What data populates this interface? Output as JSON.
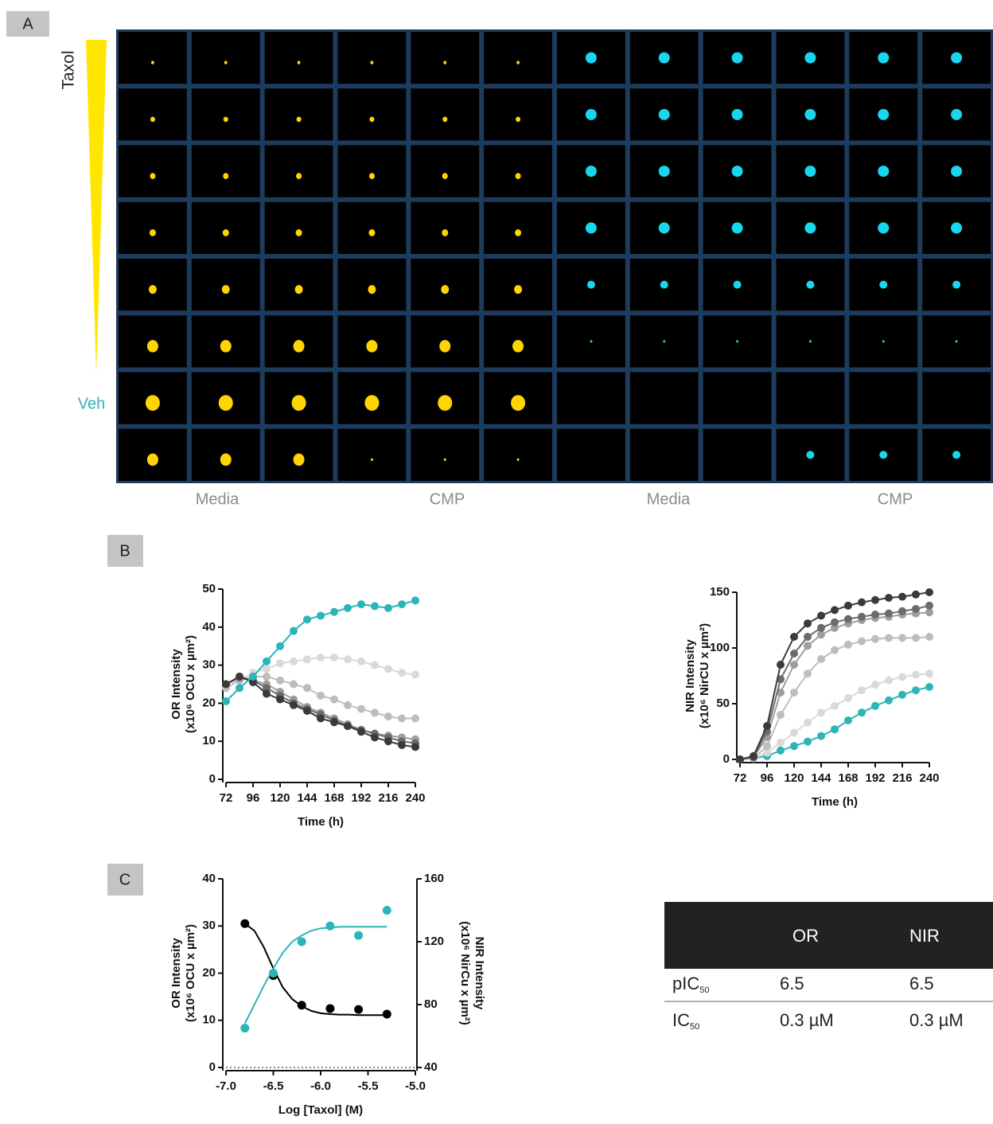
{
  "panel_labels": [
    "A",
    "B",
    "C"
  ],
  "image_grid": {
    "gradient_top": "Taxol",
    "gradient_bottom": "Veh",
    "column_labels": [
      "Media",
      "CMP",
      "Media",
      "CMP"
    ]
  },
  "chart_data": [
    {
      "type": "line",
      "xlabel": "Time (h)",
      "ylabel": [
        "OR Intensity",
        "(x10⁶ OCU x µm²)"
      ],
      "x": [
        72,
        84,
        96,
        108,
        120,
        132,
        144,
        156,
        168,
        180,
        192,
        204,
        216,
        228,
        240
      ],
      "xlim": [
        72,
        240
      ],
      "xticks": [
        72,
        96,
        120,
        144,
        168,
        192,
        216,
        240
      ],
      "ylim": [
        0,
        50
      ],
      "yticks": [
        0,
        10,
        20,
        30,
        40,
        50
      ],
      "series": [
        {
          "color": "#d9d9d9",
          "values": [
            24,
            26,
            28,
            29,
            30.5,
            31,
            31.5,
            32,
            32,
            31.5,
            31,
            30,
            29,
            28,
            27.5
          ]
        },
        {
          "color": "#bdbdbd",
          "values": [
            24,
            26,
            27,
            27,
            26,
            25,
            24,
            22,
            21,
            19.5,
            18.5,
            17.5,
            16.5,
            16,
            16
          ]
        },
        {
          "color": "#9e9e9e",
          "values": [
            25,
            26.5,
            26,
            25,
            23,
            21,
            19,
            17.5,
            16,
            14.5,
            13,
            12,
            11.5,
            11,
            10.5
          ]
        },
        {
          "color": "#6b6b6b",
          "values": [
            25,
            27,
            26,
            24,
            22,
            20,
            18.5,
            17,
            15.5,
            14,
            13,
            12,
            11,
            10,
            9.5
          ]
        },
        {
          "color": "#3a3a3a",
          "values": [
            25,
            27,
            25.5,
            22.5,
            21,
            19.5,
            18,
            16,
            15,
            14,
            12.5,
            11,
            10,
            9,
            8.5
          ]
        },
        {
          "color": "#2bb5b8",
          "values": [
            20.5,
            24,
            27,
            31,
            35,
            39,
            42,
            43,
            44,
            45,
            46,
            45.5,
            45,
            46,
            47
          ]
        }
      ]
    },
    {
      "type": "line",
      "xlabel": "Time (h)",
      "ylabel": [
        "NIR Intensity",
        "(x10⁶ NirCU x µm²)"
      ],
      "x": [
        72,
        84,
        96,
        108,
        120,
        132,
        144,
        156,
        168,
        180,
        192,
        204,
        216,
        228,
        240
      ],
      "xlim": [
        72,
        240
      ],
      "xticks": [
        72,
        96,
        120,
        144,
        168,
        192,
        216,
        240
      ],
      "ylim": [
        0,
        150
      ],
      "yticks": [
        0,
        50,
        100,
        150
      ],
      "series": [
        {
          "color": "#2bb5b8",
          "values": [
            0,
            1,
            3,
            8,
            12,
            16,
            21,
            27,
            35,
            42,
            48,
            53,
            58,
            62,
            65
          ]
        },
        {
          "color": "#d9d9d9",
          "values": [
            0,
            1,
            6,
            15,
            24,
            33,
            42,
            48,
            55,
            62,
            67,
            71,
            74,
            76,
            77
          ]
        },
        {
          "color": "#bdbdbd",
          "values": [
            0,
            1,
            12,
            40,
            60,
            77,
            90,
            98,
            103,
            106,
            108,
            109,
            109,
            109,
            110
          ]
        },
        {
          "color": "#9e9e9e",
          "values": [
            0,
            2,
            20,
            60,
            85,
            102,
            112,
            118,
            122,
            125,
            127,
            128,
            130,
            131,
            132
          ]
        },
        {
          "color": "#6b6b6b",
          "values": [
            0,
            2,
            25,
            72,
            95,
            110,
            118,
            123,
            126,
            128,
            130,
            131,
            133,
            135,
            138
          ]
        },
        {
          "color": "#3a3a3a",
          "values": [
            0,
            3,
            30,
            85,
            110,
            122,
            129,
            134,
            138,
            141,
            143,
            145,
            146,
            148,
            150
          ]
        }
      ]
    },
    {
      "type": "scatter",
      "xlabel": "Log [Taxol] (M)",
      "ylabel": [
        "OR Intensity",
        "(x10⁶ OCU x µm²)"
      ],
      "y2label": [
        "NIR Intensity",
        "(x10⁶ NirCu x µm²)"
      ],
      "x": [
        -6.8,
        -6.5,
        -6.2,
        -5.9,
        -5.6,
        -5.3
      ],
      "fit_x": [
        -6.8,
        -6.7,
        -6.6,
        -6.5,
        -6.4,
        -6.3,
        -6.2,
        -6.1,
        -6.0,
        -5.9,
        -5.8,
        -5.7,
        -5.6,
        -5.5,
        -5.4,
        -5.3
      ],
      "xlim": [
        -7,
        -5
      ],
      "xticks": [
        {
          "value": -7,
          "label": "-7.0"
        },
        {
          "value": -6.5,
          "label": "-6.5"
        },
        {
          "value": -6,
          "label": "-6.0"
        },
        {
          "value": -5.5,
          "label": "-5.5"
        },
        {
          "value": -5,
          "label": "-5.0"
        }
      ],
      "ylim": [
        0,
        40
      ],
      "yticks": [
        0,
        10,
        20,
        30,
        40
      ],
      "y2lim": [
        40,
        160
      ],
      "y2ticks": [
        40,
        80,
        120,
        160
      ],
      "series": [
        {
          "color": "#000000",
          "values": [
            30.5,
            19.5,
            13.2,
            12.5,
            12.3,
            11.3
          ],
          "fit_values": [
            30.5,
            29,
            25.5,
            21,
            17,
            14.5,
            13,
            12,
            11.5,
            11.3,
            11.2,
            11.2,
            11.1,
            11.1,
            11.1,
            11.1
          ]
        },
        {
          "color": "#2bb5b8",
          "axis": "y2",
          "values": [
            65,
            100,
            120,
            130,
            124,
            140
          ],
          "fit_values": [
            68,
            80,
            92,
            103,
            113,
            120,
            124,
            127,
            128.5,
            129,
            129.5,
            129.5,
            129.5,
            129.5,
            129.5,
            129.5
          ]
        }
      ]
    }
  ],
  "table": {
    "columns": [
      "OR",
      "NIR"
    ],
    "rows": [
      {
        "label": "pIC",
        "sub": "50",
        "cells": [
          "6.5",
          "6.5"
        ]
      },
      {
        "label": "IC",
        "sub": "50",
        "cells": [
          "0.3 µM",
          "0.3 µM"
        ]
      }
    ]
  }
}
